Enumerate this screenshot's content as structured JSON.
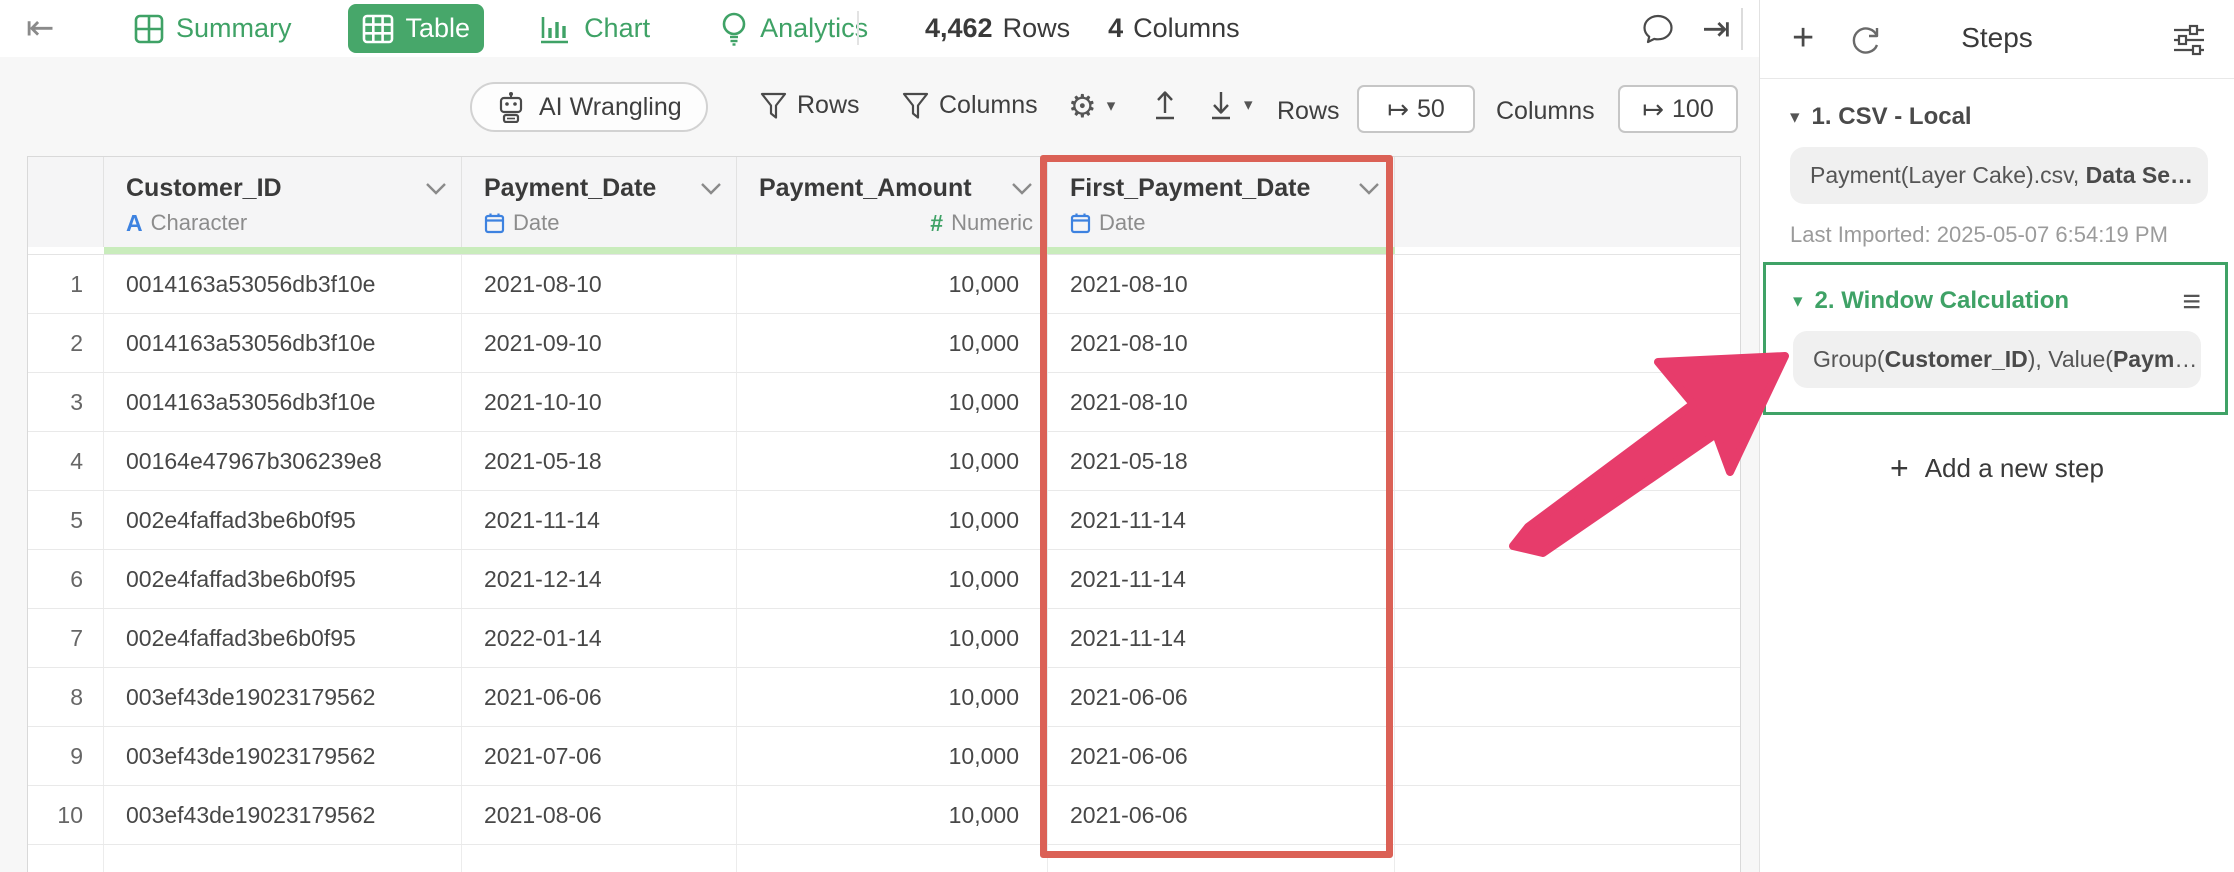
{
  "header": {
    "tabs": [
      {
        "label": "Summary",
        "active": false
      },
      {
        "label": "Table",
        "active": true
      },
      {
        "label": "Chart",
        "active": false
      },
      {
        "label": "Analytics",
        "active": false
      }
    ],
    "row_count": "4,462",
    "row_count_label": "Rows",
    "col_count": "4",
    "col_count_label": "Columns",
    "collapse_icon": "⇤",
    "expand_icon": "⇥"
  },
  "toolbar": {
    "ai_wrangling_label": "AI Wrangling",
    "rows_filter_label": "Rows",
    "columns_filter_label": "Columns",
    "gear_icon": "⚙",
    "caret_icon": "▾",
    "rows_limit_label": "Rows",
    "rows_limit_value": "50",
    "columns_limit_label": "Columns",
    "columns_limit_value": "100",
    "limit_from_icon": "↦"
  },
  "table": {
    "columns": [
      {
        "name": "Customer_ID",
        "type": "Character"
      },
      {
        "name": "Payment_Date",
        "type": "Date"
      },
      {
        "name": "Payment_Amount",
        "type": "Numeric"
      },
      {
        "name": "First_Payment_Date",
        "type": "Date"
      }
    ],
    "rows": [
      {
        "num": "1",
        "cells": [
          "0014163a53056db3f10e",
          "2021-08-10",
          "10,000",
          "2021-08-10"
        ]
      },
      {
        "num": "2",
        "cells": [
          "0014163a53056db3f10e",
          "2021-09-10",
          "10,000",
          "2021-08-10"
        ]
      },
      {
        "num": "3",
        "cells": [
          "0014163a53056db3f10e",
          "2021-10-10",
          "10,000",
          "2021-08-10"
        ]
      },
      {
        "num": "4",
        "cells": [
          "00164e47967b306239e8",
          "2021-05-18",
          "10,000",
          "2021-05-18"
        ]
      },
      {
        "num": "5",
        "cells": [
          "002e4faffad3be6b0f95",
          "2021-11-14",
          "10,000",
          "2021-11-14"
        ]
      },
      {
        "num": "6",
        "cells": [
          "002e4faffad3be6b0f95",
          "2021-12-14",
          "10,000",
          "2021-11-14"
        ]
      },
      {
        "num": "7",
        "cells": [
          "002e4faffad3be6b0f95",
          "2022-01-14",
          "10,000",
          "2021-11-14"
        ]
      },
      {
        "num": "8",
        "cells": [
          "003ef43de19023179562",
          "2021-06-06",
          "10,000",
          "2021-06-06"
        ]
      },
      {
        "num": "9",
        "cells": [
          "003ef43de19023179562",
          "2021-07-06",
          "10,000",
          "2021-06-06"
        ]
      },
      {
        "num": "10",
        "cells": [
          "003ef43de19023179562",
          "2021-08-06",
          "10,000",
          "2021-06-06"
        ]
      }
    ]
  },
  "sidebar": {
    "title": "Steps",
    "plus_icon": "+",
    "hamburger_icon": "≡",
    "collapse_triangle": "▾",
    "steps": [
      {
        "title": "1. CSV - Local",
        "pill_parts": [
          {
            "text": "Payment(Layer Cake).csv, ",
            "bold": false
          },
          {
            "text": "Data Se…",
            "bold": true
          }
        ],
        "meta": "Last Imported: 2025-05-07 6:54:19 PM"
      },
      {
        "title": "2. Window Calculation",
        "pill_parts": [
          {
            "text": "Group(",
            "bold": false
          },
          {
            "text": "Customer_ID",
            "bold": true
          },
          {
            "text": "), Value(",
            "bold": false
          },
          {
            "text": "Paym",
            "bold": true
          },
          {
            "text": "…",
            "bold": false
          }
        ]
      }
    ],
    "add_step_label": "Add a new step",
    "add_step_plus": "+"
  },
  "colors": {
    "accent_green": "#3fa266",
    "active_tab_green": "#47a76a",
    "quality_bar_green": "#c9ecbc",
    "highlight_red": "#db6156",
    "arrow_pink": "#e73c6b",
    "type_blue": "#3d82e0"
  }
}
